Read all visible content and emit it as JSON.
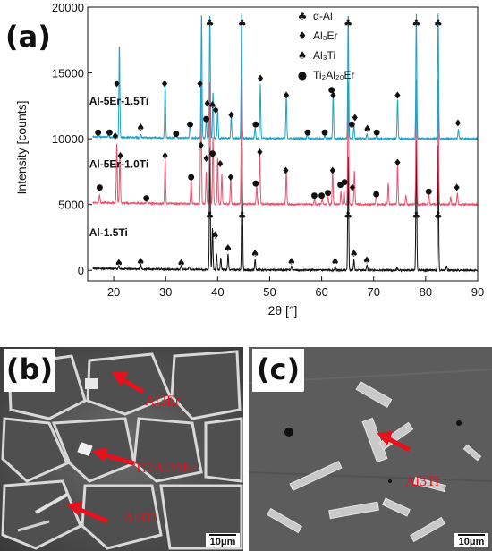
{
  "panel_a": {
    "letter": "(a)",
    "chart_data": {
      "type": "line",
      "xlabel": "2θ [°]",
      "ylabel": "Intensity [counts]",
      "xlim": [
        15,
        90
      ],
      "ylim": [
        -800,
        20000
      ],
      "x_ticks": [
        20,
        30,
        40,
        50,
        60,
        70,
        80,
        90
      ],
      "y_ticks": [
        0,
        5000,
        10000,
        15000,
        20000
      ],
      "series": [
        {
          "name": "Al-1.5Ti",
          "color": "#111111",
          "baseline": 0,
          "peaks": [
            [
              38.5,
              9500
            ],
            [
              44.7,
              9500
            ],
            [
              65.1,
              8800
            ],
            [
              78.2,
              9800
            ],
            [
              82.4,
              9500
            ],
            [
              39.0,
              3200
            ],
            [
              39.8,
              1200
            ],
            [
              40.6,
              900
            ],
            [
              42.0,
              1200
            ],
            [
              47.2,
              800
            ],
            [
              33.0,
              300
            ],
            [
              25.2,
              350
            ],
            [
              21.0,
              250
            ],
            [
              54.2,
              300
            ],
            [
              62.6,
              300
            ],
            [
              66.2,
              800
            ],
            [
              68.7,
              400
            ],
            [
              74.5,
              200
            ],
            [
              84.0,
              300
            ],
            [
              34.5,
              200
            ]
          ]
        },
        {
          "name": "Al-5Er-1.0Ti",
          "color": "#e8546f",
          "baseline": 5000,
          "peaks": [
            [
              20.6,
              4500
            ],
            [
              21.2,
              3800
            ],
            [
              29.9,
              3400
            ],
            [
              36.8,
              9500
            ],
            [
              38.5,
              9500
            ],
            [
              39.1,
              5200
            ],
            [
              40.0,
              3500
            ],
            [
              40.8,
              2300
            ],
            [
              42.5,
              2000
            ],
            [
              44.6,
              9500
            ],
            [
              48.1,
              3800
            ],
            [
              53.2,
              2400
            ],
            [
              62.1,
              2500
            ],
            [
              65.1,
              9500
            ],
            [
              66.3,
              2600
            ],
            [
              72.8,
              1600
            ],
            [
              74.6,
              3000
            ],
            [
              78.2,
              9500
            ],
            [
              82.4,
              9500
            ],
            [
              86.1,
              900
            ],
            [
              17.3,
              600
            ],
            [
              26.4,
              300
            ],
            [
              34.9,
              2000
            ],
            [
              37.8,
              2500
            ],
            [
              47.5,
              1500
            ],
            [
              58.6,
              400
            ],
            [
              60.1,
              400
            ],
            [
              61.2,
              600
            ],
            [
              63.7,
              1000
            ],
            [
              64.3,
              1100
            ],
            [
              70.5,
              800
            ],
            [
              76.2,
              700
            ],
            [
              80.6,
              900
            ],
            [
              84.8,
              600
            ]
          ]
        },
        {
          "name": "Al-5Er-1.5Ti",
          "color": "#1ba3cc",
          "baseline": 10000,
          "peaks": [
            [
              21.1,
              7000
            ],
            [
              29.9,
              4200
            ],
            [
              36.9,
              9500
            ],
            [
              38.5,
              9500
            ],
            [
              39.1,
              3500
            ],
            [
              40.0,
              2300
            ],
            [
              42.6,
              1700
            ],
            [
              44.6,
              9500
            ],
            [
              48.2,
              4100
            ],
            [
              53.2,
              3200
            ],
            [
              62.2,
              3300
            ],
            [
              65.1,
              9500
            ],
            [
              66.2,
              1000
            ],
            [
              70.6,
              600
            ],
            [
              74.6,
              3000
            ],
            [
              78.2,
              9500
            ],
            [
              82.4,
              9500
            ],
            [
              86.3,
              700
            ],
            [
              17.0,
              200
            ],
            [
              19.0,
              200
            ],
            [
              25.2,
              200
            ],
            [
              32.0,
              200
            ],
            [
              34.7,
              1000
            ],
            [
              37.8,
              1500
            ],
            [
              47.2,
              800
            ],
            [
              57.2,
              300
            ],
            [
              60.6,
              300
            ],
            [
              68.7,
              300
            ]
          ]
        }
      ],
      "legend": [
        {
          "symbol": "♣",
          "text": "α-Al"
        },
        {
          "symbol": "♦",
          "text": "Al₃Er"
        },
        {
          "symbol": "♠",
          "text": "Al₃Ti"
        },
        {
          "symbol": "●",
          "text": "Ti₂Al₂₀Er"
        }
      ],
      "markers": [
        {
          "symbol": "♣",
          "x": 38.5,
          "y": 18800
        },
        {
          "symbol": "♣",
          "x": 44.7,
          "y": 18800
        },
        {
          "symbol": "♣",
          "x": 65.1,
          "y": 18800
        },
        {
          "symbol": "♣",
          "x": 78.2,
          "y": 18800
        },
        {
          "symbol": "♣",
          "x": 82.4,
          "y": 18800
        },
        {
          "symbol": "♣",
          "x": 38.5,
          "y": 4200
        },
        {
          "symbol": "♣",
          "x": 44.7,
          "y": 4200
        },
        {
          "symbol": "♣",
          "x": 65.1,
          "y": 4200
        },
        {
          "symbol": "♣",
          "x": 78.2,
          "y": 4200
        },
        {
          "symbol": "♣",
          "x": 82.4,
          "y": 4200
        },
        {
          "symbol": "♦",
          "x": 20.6,
          "y": 14200
        },
        {
          "symbol": "♦",
          "x": 29.8,
          "y": 14200
        },
        {
          "symbol": "♦",
          "x": 36.6,
          "y": 14200
        },
        {
          "symbol": "♦",
          "x": 38.0,
          "y": 12700
        },
        {
          "symbol": "♦",
          "x": 39.6,
          "y": 12200
        },
        {
          "symbol": "♦",
          "x": 42.6,
          "y": 11800
        },
        {
          "symbol": "♦",
          "x": 48.2,
          "y": 14600
        },
        {
          "symbol": "♦",
          "x": 53.2,
          "y": 13300
        },
        {
          "symbol": "♦",
          "x": 62.2,
          "y": 13300
        },
        {
          "symbol": "♦",
          "x": 66.4,
          "y": 11600
        },
        {
          "symbol": "♦",
          "x": 74.6,
          "y": 13300
        },
        {
          "symbol": "♦",
          "x": 86.2,
          "y": 11200
        },
        {
          "symbol": "♦",
          "x": 20.3,
          "y": 10200
        },
        {
          "symbol": "♦",
          "x": 21.3,
          "y": 8700
        },
        {
          "symbol": "♦",
          "x": 29.9,
          "y": 8700
        },
        {
          "symbol": "♦",
          "x": 36.8,
          "y": 9500
        },
        {
          "symbol": "♦",
          "x": 37.8,
          "y": 8500
        },
        {
          "symbol": "♦",
          "x": 40.5,
          "y": 8100
        },
        {
          "symbol": "♦",
          "x": 42.5,
          "y": 7100
        },
        {
          "symbol": "♦",
          "x": 48.1,
          "y": 9000
        },
        {
          "symbol": "♦",
          "x": 53.1,
          "y": 7600
        },
        {
          "symbol": "♦",
          "x": 62.1,
          "y": 7600
        },
        {
          "symbol": "♦",
          "x": 65.9,
          "y": 6300
        },
        {
          "symbol": "♦",
          "x": 74.6,
          "y": 8200
        },
        {
          "symbol": "♦",
          "x": 86.0,
          "y": 6300
        },
        {
          "symbol": "♠",
          "x": 25.2,
          "y": 10900
        },
        {
          "symbol": "♠",
          "x": 39.0,
          "y": 12600
        },
        {
          "symbol": "♠",
          "x": 68.8,
          "y": 10800
        },
        {
          "symbol": "♠",
          "x": 21.0,
          "y": 600
        },
        {
          "symbol": "♠",
          "x": 25.2,
          "y": 700
        },
        {
          "symbol": "♠",
          "x": 33.0,
          "y": 600
        },
        {
          "symbol": "♠",
          "x": 39.5,
          "y": 2700
        },
        {
          "symbol": "♠",
          "x": 42.0,
          "y": 1700
        },
        {
          "symbol": "♠",
          "x": 47.2,
          "y": 1300
        },
        {
          "symbol": "♠",
          "x": 54.2,
          "y": 700
        },
        {
          "symbol": "♠",
          "x": 62.6,
          "y": 700
        },
        {
          "symbol": "♠",
          "x": 66.2,
          "y": 1300
        },
        {
          "symbol": "♠",
          "x": 68.7,
          "y": 800
        },
        {
          "symbol": "●",
          "x": 17.0,
          "y": 10600
        },
        {
          "symbol": "●",
          "x": 19.2,
          "y": 10600
        },
        {
          "symbol": "●",
          "x": 32.0,
          "y": 10500
        },
        {
          "symbol": "●",
          "x": 34.7,
          "y": 11200
        },
        {
          "symbol": "●",
          "x": 37.8,
          "y": 11600
        },
        {
          "symbol": "●",
          "x": 47.3,
          "y": 11200
        },
        {
          "symbol": "●",
          "x": 57.3,
          "y": 10600
        },
        {
          "symbol": "●",
          "x": 60.6,
          "y": 10600
        },
        {
          "symbol": "●",
          "x": 61.9,
          "y": 13800
        },
        {
          "symbol": "●",
          "x": 65.8,
          "y": 11200
        },
        {
          "symbol": "●",
          "x": 70.6,
          "y": 10600
        },
        {
          "symbol": "●",
          "x": 17.3,
          "y": 6400
        },
        {
          "symbol": "●",
          "x": 26.3,
          "y": 5600
        },
        {
          "symbol": "●",
          "x": 34.9,
          "y": 7200
        },
        {
          "symbol": "●",
          "x": 39.0,
          "y": 9000
        },
        {
          "symbol": "●",
          "x": 47.3,
          "y": 6700
        },
        {
          "symbol": "●",
          "x": 58.6,
          "y": 5800
        },
        {
          "symbol": "●",
          "x": 60.0,
          "y": 5800
        },
        {
          "symbol": "●",
          "x": 61.2,
          "y": 6000
        },
        {
          "symbol": "●",
          "x": 63.6,
          "y": 6600
        },
        {
          "symbol": "●",
          "x": 64.4,
          "y": 6800
        },
        {
          "symbol": "●",
          "x": 70.5,
          "y": 5900
        },
        {
          "symbol": "●",
          "x": 80.6,
          "y": 6100
        }
      ],
      "grid": false
    }
  },
  "panel_b": {
    "letter": "(b)",
    "labels": [
      "Al3Er",
      "Ti2Al20Er",
      "Al3Ti"
    ],
    "scale_text": "10μm"
  },
  "panel_c": {
    "letter": "(c)",
    "labels": [
      "Al3Ti"
    ],
    "scale_text": "10μm"
  }
}
